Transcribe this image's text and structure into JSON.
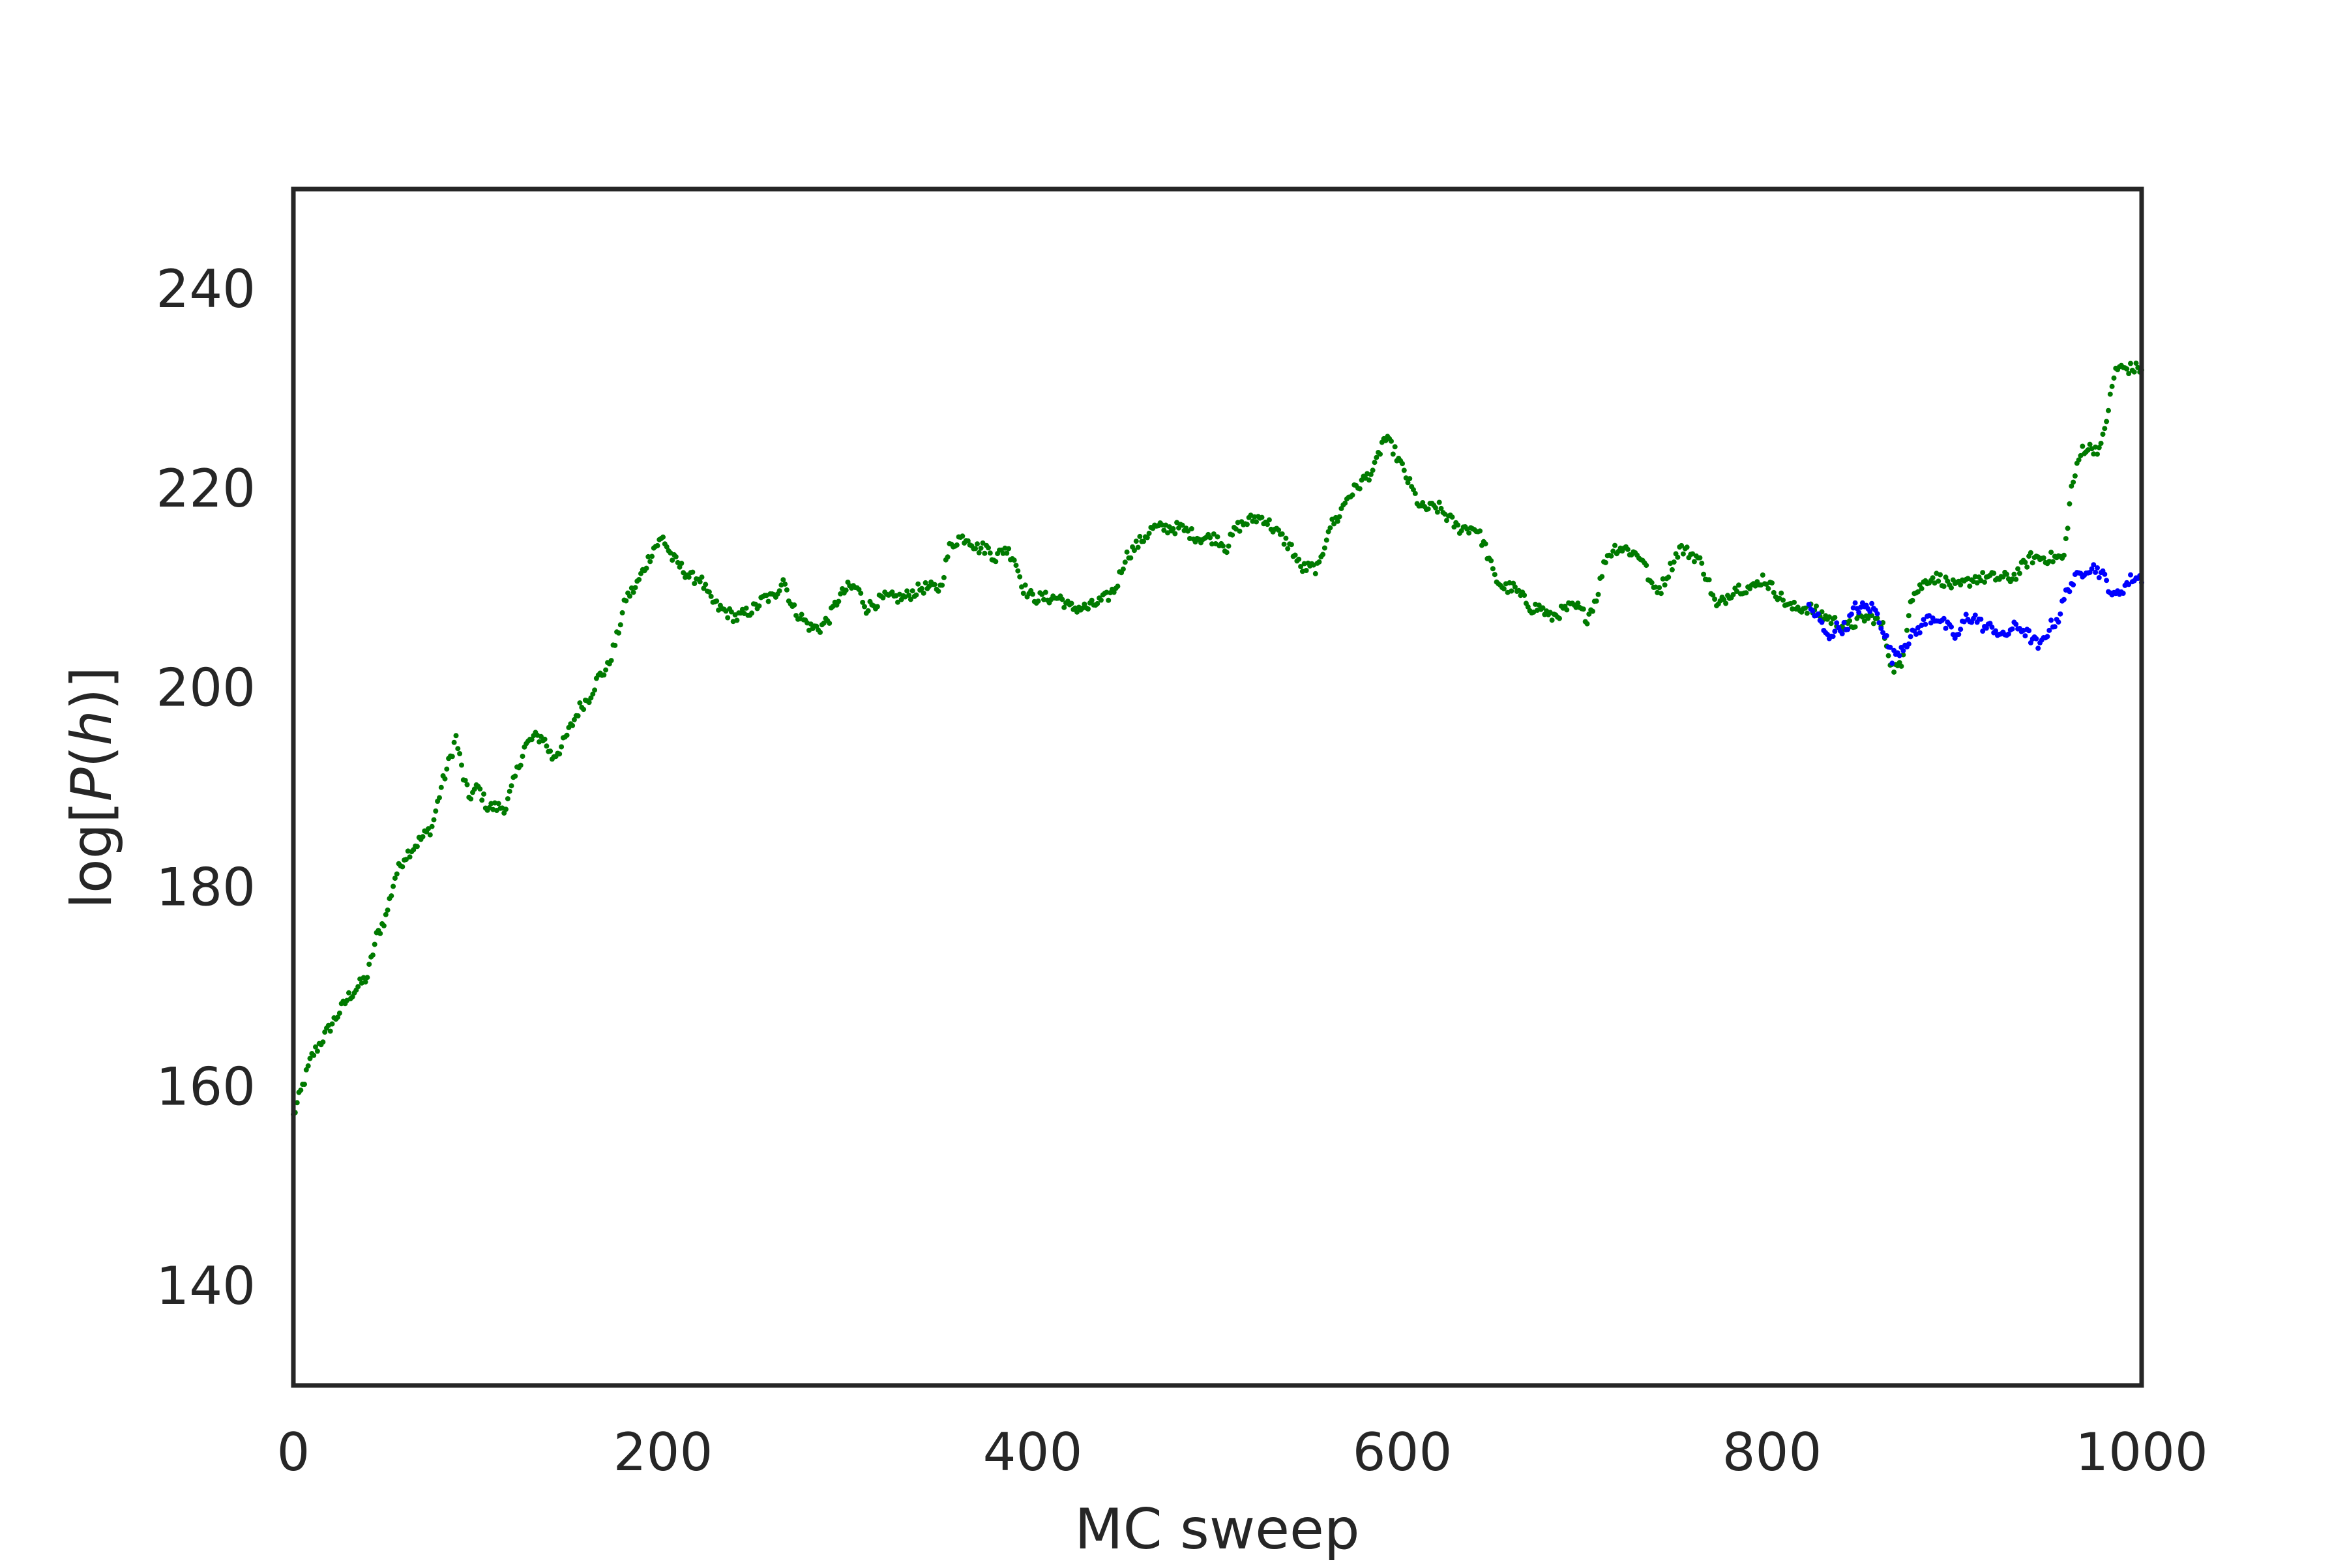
{
  "chart_data": {
    "type": "scatter",
    "title": "",
    "xlabel": "MC sweep",
    "ylabel_parts": [
      "log[",
      "P",
      "(",
      "h",
      ")]"
    ],
    "xlim": [
      0,
      1000
    ],
    "ylim": [
      130,
      250
    ],
    "xticks": [
      0,
      200,
      400,
      600,
      800,
      1000
    ],
    "yticks": [
      140,
      160,
      180,
      200,
      220,
      240
    ],
    "grid": false,
    "legend": "none",
    "colors": {
      "green": "#007a00",
      "blue": "#0000ff",
      "axes": "#262626",
      "text": "#262626"
    },
    "series": [
      {
        "color": "#007a00",
        "x_start": 0,
        "x_end": 1000,
        "anchors": [
          [
            0,
            157
          ],
          [
            5,
            160
          ],
          [
            10,
            163
          ],
          [
            20,
            166
          ],
          [
            30,
            169
          ],
          [
            40,
            171
          ],
          [
            45,
            175
          ],
          [
            50,
            177
          ],
          [
            55,
            181
          ],
          [
            60,
            183
          ],
          [
            70,
            185
          ],
          [
            75,
            186
          ],
          [
            80,
            190
          ],
          [
            85,
            193
          ],
          [
            88,
            195
          ],
          [
            92,
            191
          ],
          [
            95,
            189
          ],
          [
            100,
            190
          ],
          [
            105,
            188
          ],
          [
            115,
            188
          ],
          [
            120,
            191
          ],
          [
            125,
            194
          ],
          [
            130,
            195
          ],
          [
            135,
            195
          ],
          [
            140,
            193
          ],
          [
            145,
            194
          ],
          [
            150,
            196
          ],
          [
            155,
            198
          ],
          [
            160,
            199
          ],
          [
            165,
            201
          ],
          [
            170,
            202
          ],
          [
            175,
            205
          ],
          [
            180,
            209
          ],
          [
            185,
            210
          ],
          [
            190,
            212
          ],
          [
            195,
            214
          ],
          [
            200,
            215
          ],
          [
            205,
            213
          ],
          [
            210,
            212
          ],
          [
            215,
            211
          ],
          [
            220,
            211
          ],
          [
            225,
            209
          ],
          [
            230,
            208
          ],
          [
            240,
            207
          ],
          [
            250,
            208
          ],
          [
            255,
            209
          ],
          [
            260,
            209
          ],
          [
            265,
            211
          ],
          [
            270,
            208
          ],
          [
            280,
            206
          ],
          [
            285,
            206
          ],
          [
            290,
            207
          ],
          [
            295,
            209
          ],
          [
            300,
            210
          ],
          [
            305,
            210
          ],
          [
            310,
            208
          ],
          [
            320,
            209
          ],
          [
            330,
            209
          ],
          [
            340,
            210
          ],
          [
            350,
            210
          ],
          [
            355,
            214
          ],
          [
            360,
            215
          ],
          [
            365,
            215
          ],
          [
            370,
            214
          ],
          [
            375,
            214
          ],
          [
            380,
            213
          ],
          [
            385,
            214
          ],
          [
            390,
            213
          ],
          [
            395,
            210
          ],
          [
            400,
            209
          ],
          [
            410,
            209
          ],
          [
            415,
            209
          ],
          [
            420,
            208
          ],
          [
            425,
            208
          ],
          [
            430,
            208
          ],
          [
            440,
            209
          ],
          [
            445,
            210
          ],
          [
            450,
            213
          ],
          [
            455,
            214
          ],
          [
            460,
            215
          ],
          [
            465,
            216
          ],
          [
            470,
            216
          ],
          [
            480,
            216
          ],
          [
            490,
            215
          ],
          [
            500,
            215
          ],
          [
            505,
            214
          ],
          [
            510,
            216
          ],
          [
            520,
            217
          ],
          [
            525,
            217
          ],
          [
            530,
            216
          ],
          [
            540,
            214
          ],
          [
            545,
            212
          ],
          [
            555,
            212
          ],
          [
            560,
            216
          ],
          [
            565,
            217
          ],
          [
            570,
            219
          ],
          [
            575,
            220
          ],
          [
            580,
            221
          ],
          [
            585,
            222
          ],
          [
            590,
            225
          ],
          [
            595,
            224
          ],
          [
            600,
            222
          ],
          [
            605,
            220
          ],
          [
            610,
            218
          ],
          [
            615,
            218
          ],
          [
            620,
            218
          ],
          [
            625,
            217
          ],
          [
            630,
            216
          ],
          [
            640,
            216
          ],
          [
            645,
            214
          ],
          [
            650,
            211
          ],
          [
            655,
            210
          ],
          [
            660,
            210
          ],
          [
            665,
            209
          ],
          [
            670,
            208
          ],
          [
            675,
            208
          ],
          [
            680,
            207
          ],
          [
            690,
            208
          ],
          [
            695,
            208
          ],
          [
            700,
            207
          ],
          [
            705,
            209
          ],
          [
            710,
            213
          ],
          [
            715,
            214
          ],
          [
            720,
            214
          ],
          [
            730,
            213
          ],
          [
            735,
            210
          ],
          [
            740,
            210
          ],
          [
            745,
            212
          ],
          [
            750,
            214
          ],
          [
            760,
            213
          ],
          [
            765,
            211
          ],
          [
            770,
            208
          ],
          [
            775,
            209
          ],
          [
            780,
            210
          ],
          [
            790,
            210
          ],
          [
            795,
            211
          ],
          [
            800,
            210
          ],
          [
            810,
            208
          ],
          [
            820,
            208
          ],
          [
            830,
            207
          ],
          [
            840,
            206
          ],
          [
            850,
            207
          ],
          [
            855,
            207
          ],
          [
            860,
            206
          ],
          [
            865,
            202
          ],
          [
            870,
            202
          ],
          [
            875,
            209
          ],
          [
            880,
            210
          ],
          [
            885,
            211
          ],
          [
            890,
            211
          ],
          [
            900,
            210
          ],
          [
            910,
            211
          ],
          [
            920,
            211
          ],
          [
            930,
            211
          ],
          [
            935,
            212
          ],
          [
            940,
            213
          ],
          [
            950,
            213
          ],
          [
            958,
            213
          ],
          [
            962,
            220
          ],
          [
            968,
            224
          ],
          [
            972,
            224
          ],
          [
            978,
            224
          ],
          [
            983,
            229
          ],
          [
            986,
            232
          ],
          [
            990,
            232
          ],
          [
            1000,
            232
          ]
        ]
      },
      {
        "color": "#0000ff",
        "x_start": 820,
        "x_end": 1000,
        "anchors": [
          [
            820,
            208
          ],
          [
            825,
            207
          ],
          [
            830,
            205
          ],
          [
            835,
            206
          ],
          [
            840,
            206
          ],
          [
            845,
            208
          ],
          [
            850,
            208
          ],
          [
            855,
            208
          ],
          [
            860,
            206
          ],
          [
            865,
            203
          ],
          [
            870,
            204
          ],
          [
            875,
            205
          ],
          [
            880,
            206
          ],
          [
            885,
            207
          ],
          [
            890,
            207
          ],
          [
            895,
            206
          ],
          [
            900,
            205
          ],
          [
            905,
            207
          ],
          [
            910,
            207
          ],
          [
            915,
            206
          ],
          [
            920,
            206
          ],
          [
            925,
            205
          ],
          [
            930,
            206
          ],
          [
            935,
            206
          ],
          [
            940,
            205
          ],
          [
            945,
            204
          ],
          [
            950,
            206
          ],
          [
            955,
            207
          ],
          [
            960,
            210
          ],
          [
            965,
            211
          ],
          [
            970,
            212
          ],
          [
            975,
            212
          ],
          [
            980,
            211
          ],
          [
            985,
            209
          ],
          [
            990,
            210
          ],
          [
            995,
            211
          ],
          [
            1000,
            211
          ]
        ]
      }
    ]
  }
}
